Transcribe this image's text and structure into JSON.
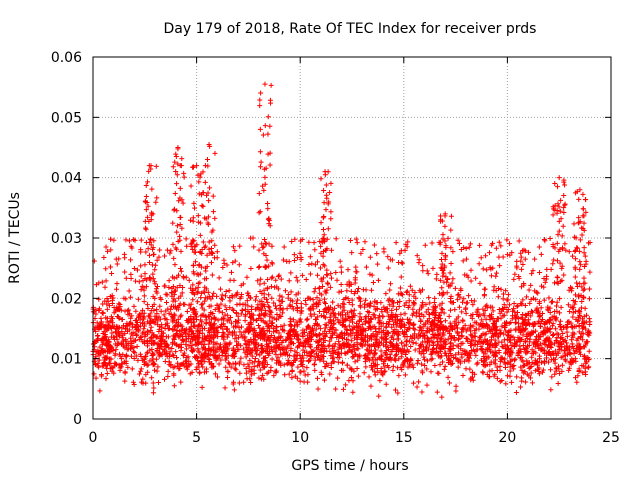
{
  "chart_data": {
    "type": "scatter",
    "title": "Day 179 of 2018, Rate Of TEC Index for receiver prds",
    "xlabel": "GPS time / hours",
    "ylabel": "ROTI / TECUs",
    "xlim": [
      0,
      25
    ],
    "ylim": [
      0,
      0.06
    ],
    "xticks": [
      0,
      5,
      10,
      15,
      20,
      25
    ],
    "xtick_labels": [
      "0",
      "5",
      "10",
      "15",
      "20",
      "25"
    ],
    "yticks": [
      0,
      0.01,
      0.02,
      0.03,
      0.04,
      0.05,
      0.06
    ],
    "ytick_labels": [
      "0",
      "0.01",
      "0.02",
      "0.03",
      "0.04",
      "0.05",
      "0.06"
    ],
    "grid": true,
    "marker": "+",
    "color": "#ff0000",
    "series": [
      {
        "name": "ROTI",
        "x_range": [
          0,
          24
        ],
        "typical_band": [
          0.003,
          0.022
        ],
        "notable_peaks": [
          {
            "x": 2.8,
            "y": 0.042
          },
          {
            "x": 4.1,
            "y": 0.045
          },
          {
            "x": 5.0,
            "y": 0.042
          },
          {
            "x": 5.6,
            "y": 0.0455
          },
          {
            "x": 8.3,
            "y": 0.0555
          },
          {
            "x": 11.2,
            "y": 0.041
          },
          {
            "x": 17.0,
            "y": 0.034
          },
          {
            "x": 22.5,
            "y": 0.04
          },
          {
            "x": 23.5,
            "y": 0.038
          }
        ]
      }
    ]
  }
}
